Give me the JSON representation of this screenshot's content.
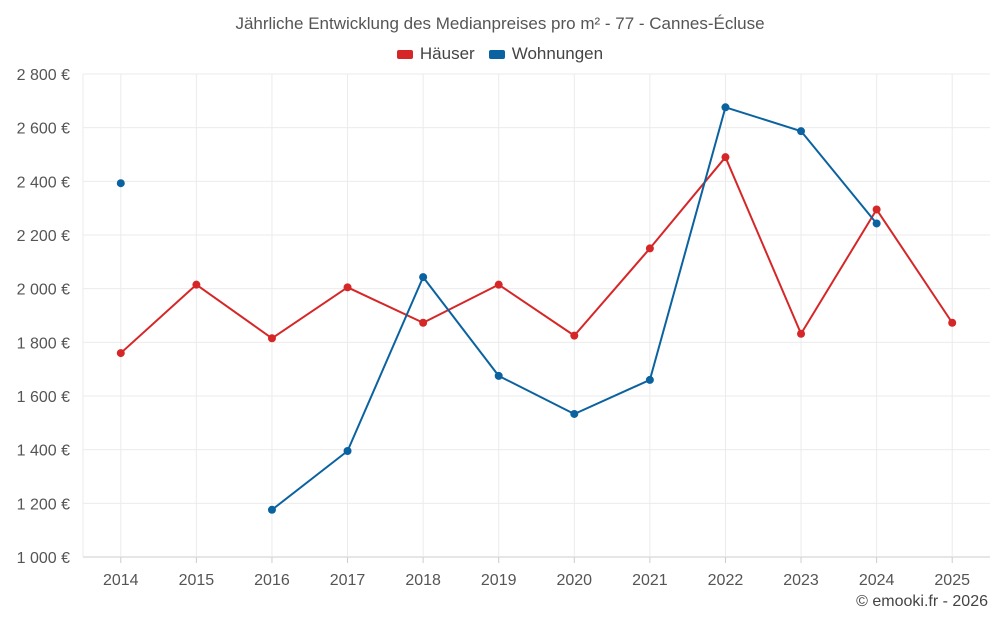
{
  "chart_data": {
    "type": "line",
    "title": "Jährliche Entwicklung des Medianpreises pro m² - 77 - Cannes-Écluse",
    "categories": [
      "2014",
      "2015",
      "2016",
      "2017",
      "2018",
      "2019",
      "2020",
      "2021",
      "2022",
      "2023",
      "2024",
      "2025"
    ],
    "ylim": [
      1000,
      2800
    ],
    "yticks": [
      1000,
      1200,
      1400,
      1600,
      1800,
      2000,
      2200,
      2400,
      2600,
      2800
    ],
    "ytick_labels": [
      "1 000 €",
      "1 200 €",
      "1 400 €",
      "1 600 €",
      "1 800 €",
      "2 000 €",
      "2 200 €",
      "2 400 €",
      "2 600 €",
      "2 800 €"
    ],
    "xlabel": "",
    "ylabel": "",
    "grid": true,
    "legend_position": "top-center",
    "series": [
      {
        "name": "Häuser",
        "color": "#d62728",
        "values": [
          1760,
          2015,
          1815,
          2005,
          1873,
          2015,
          1825,
          2150,
          2490,
          1832,
          2295,
          1873
        ]
      },
      {
        "name": "Wohnungen",
        "color": "#0b62a0",
        "values": [
          2393,
          null,
          1176,
          1395,
          2043,
          1675,
          1533,
          1660,
          2676,
          2587,
          2243,
          null
        ]
      }
    ]
  },
  "footer": {
    "copyright": "© emooki.fr - 2026"
  }
}
